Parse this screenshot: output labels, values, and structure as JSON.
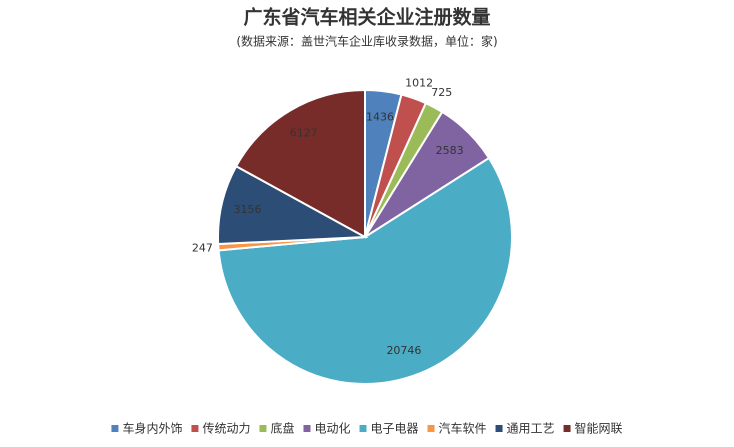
{
  "chart_data": {
    "type": "pie",
    "title": "广东省汽车相关企业注册数量",
    "subtitle": "(数据来源：盖世汽车企业库收录数据，单位：家)",
    "categories": [
      "车身内外饰",
      "传统动力",
      "底盘",
      "电动化",
      "电子电器",
      "汽车软件",
      "通用工艺",
      "智能网联"
    ],
    "values": [
      1436,
      1012,
      725,
      2583,
      20746,
      247,
      3156,
      6127
    ],
    "colors": [
      "#4f81bd",
      "#c0504d",
      "#9bbb59",
      "#8064a2",
      "#4bacc6",
      "#f79646",
      "#2c4d75",
      "#772c2a"
    ],
    "legend": "bottom"
  }
}
